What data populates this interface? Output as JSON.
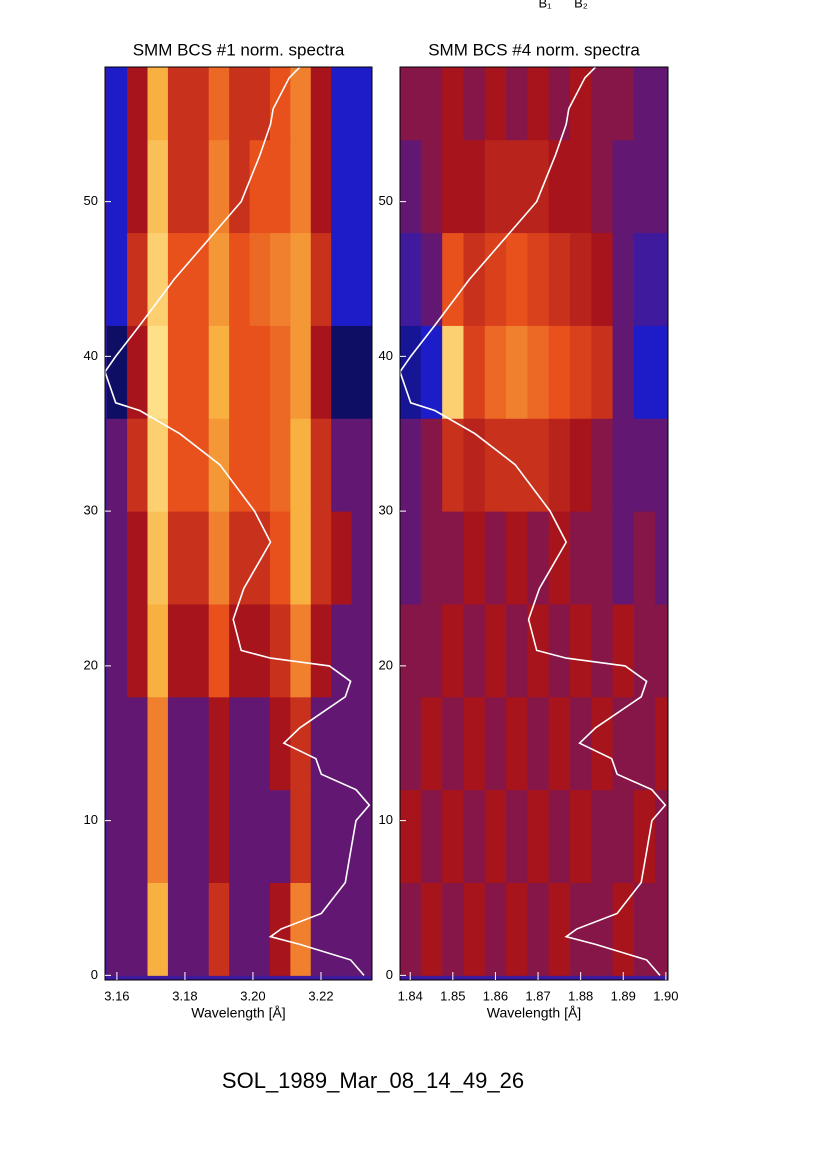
{
  "header": {
    "labels": [
      "B₁",
      "B₂"
    ]
  },
  "footer": "SOL_1989_Mar_08_14_49_26",
  "colormap": [
    "#000000",
    "#1c1cc8",
    "#a8141c",
    "#e8501c",
    "#f8b040",
    "#fff0a0"
  ],
  "chart_data": [
    {
      "type": "heatmap",
      "title": "SMM BCS #1 norm. spectra",
      "xlabel": "Wavelength [Å]",
      "xlim": [
        3.1565,
        3.235
      ],
      "xticks": [
        3.16,
        3.18,
        {
          "value": 3.2,
          "label": "3.20"
        },
        3.22
      ],
      "ylim": [
        -0.3,
        58.7
      ],
      "yticks": [
        0,
        10,
        20,
        30,
        40,
        50
      ],
      "x": [
        3.16,
        3.166,
        3.172,
        3.178,
        3.184,
        3.19,
        3.196,
        3.202,
        3.208,
        3.214,
        3.22,
        3.226,
        3.232
      ],
      "y": [
        3,
        9,
        15,
        21,
        27,
        33,
        39,
        45,
        51,
        57
      ],
      "z": [
        [
          0.3,
          0.3,
          0.8,
          0.3,
          0.3,
          0.5,
          0.3,
          0.3,
          0.4,
          0.7,
          0.3,
          0.3,
          0.3
        ],
        [
          0.3,
          0.3,
          0.7,
          0.3,
          0.3,
          0.4,
          0.3,
          0.3,
          0.3,
          0.5,
          0.3,
          0.3,
          0.3
        ],
        [
          0.3,
          0.3,
          0.7,
          0.3,
          0.3,
          0.4,
          0.3,
          0.3,
          0.4,
          0.5,
          0.3,
          0.3,
          0.3
        ],
        [
          0.3,
          0.4,
          0.8,
          0.4,
          0.4,
          0.6,
          0.4,
          0.4,
          0.5,
          0.7,
          0.4,
          0.3,
          0.3
        ],
        [
          0.3,
          0.4,
          0.85,
          0.5,
          0.5,
          0.7,
          0.5,
          0.5,
          0.6,
          0.8,
          0.5,
          0.4,
          0.3
        ],
        [
          0.3,
          0.5,
          0.9,
          0.6,
          0.6,
          0.75,
          0.6,
          0.6,
          0.65,
          0.8,
          0.5,
          0.3,
          0.3
        ],
        [
          0.1,
          0.4,
          0.95,
          0.6,
          0.6,
          0.8,
          0.6,
          0.6,
          0.65,
          0.75,
          0.4,
          0.1,
          0.1
        ],
        [
          0.2,
          0.5,
          0.9,
          0.6,
          0.6,
          0.75,
          0.6,
          0.65,
          0.7,
          0.75,
          0.5,
          0.2,
          0.2
        ],
        [
          0.2,
          0.4,
          0.85,
          0.5,
          0.5,
          0.7,
          0.5,
          0.6,
          0.6,
          0.7,
          0.4,
          0.2,
          0.2
        ],
        [
          0.2,
          0.4,
          0.8,
          0.5,
          0.5,
          0.65,
          0.5,
          0.5,
          0.6,
          0.7,
          0.4,
          0.2,
          0.2
        ]
      ],
      "curve": {
        "color": "#ffffff",
        "t": [
          0,
          1,
          2,
          2.5,
          3,
          4,
          6,
          8,
          10,
          11,
          12,
          13,
          14,
          15,
          16,
          18,
          19,
          20,
          20.5,
          21,
          23,
          25,
          28,
          30,
          33,
          35,
          36.5,
          37,
          39,
          40,
          42,
          45,
          48,
          50,
          53,
          55,
          56,
          58,
          58.7
        ],
        "values": [
          0.97,
          0.92,
          0.73,
          0.62,
          0.66,
          0.81,
          0.9,
          0.92,
          0.94,
          0.99,
          0.94,
          0.81,
          0.79,
          0.67,
          0.73,
          0.9,
          0.92,
          0.84,
          0.62,
          0.51,
          0.48,
          0.52,
          0.62,
          0.56,
          0.43,
          0.28,
          0.13,
          0.04,
          0,
          0.04,
          0.13,
          0.26,
          0.41,
          0.51,
          0.58,
          0.62,
          0.63,
          0.69,
          0.73
        ]
      }
    },
    {
      "type": "heatmap",
      "title": "SMM BCS #4 norm. spectra",
      "xlabel": "Wavelength [Å]",
      "xlim": [
        1.8376,
        1.9005
      ],
      "xticks": [
        1.84,
        1.85,
        1.86,
        1.87,
        1.88,
        1.89,
        {
          "value": 1.9,
          "label": "1.90"
        }
      ],
      "ylim": [
        -0.3,
        58.7
      ],
      "yticks": [
        0,
        10,
        20,
        30,
        40,
        50
      ],
      "x": [
        1.84,
        1.845,
        1.85,
        1.855,
        1.86,
        1.865,
        1.87,
        1.875,
        1.88,
        1.885,
        1.89,
        1.895,
        1.9
      ],
      "y": [
        3,
        9,
        15,
        21,
        27,
        33,
        39,
        45,
        51,
        57
      ],
      "z": [
        [
          0.35,
          0.4,
          0.35,
          0.4,
          0.35,
          0.4,
          0.35,
          0.4,
          0.35,
          0.35,
          0.4,
          0.35,
          0.35
        ],
        [
          0.4,
          0.35,
          0.4,
          0.35,
          0.4,
          0.35,
          0.4,
          0.35,
          0.4,
          0.35,
          0.35,
          0.4,
          0.35
        ],
        [
          0.35,
          0.4,
          0.35,
          0.4,
          0.35,
          0.4,
          0.35,
          0.4,
          0.35,
          0.4,
          0.35,
          0.35,
          0.4
        ],
        [
          0.35,
          0.35,
          0.4,
          0.35,
          0.4,
          0.35,
          0.4,
          0.35,
          0.4,
          0.35,
          0.4,
          0.35,
          0.35
        ],
        [
          0.3,
          0.35,
          0.35,
          0.4,
          0.35,
          0.4,
          0.35,
          0.4,
          0.35,
          0.35,
          0.3,
          0.35,
          0.3
        ],
        [
          0.3,
          0.35,
          0.5,
          0.45,
          0.5,
          0.5,
          0.5,
          0.45,
          0.4,
          0.35,
          0.3,
          0.3,
          0.3
        ],
        [
          0.15,
          0.2,
          0.9,
          0.55,
          0.65,
          0.7,
          0.65,
          0.6,
          0.55,
          0.5,
          0.3,
          0.2,
          0.2
        ],
        [
          0.25,
          0.3,
          0.6,
          0.5,
          0.55,
          0.6,
          0.55,
          0.5,
          0.45,
          0.4,
          0.3,
          0.25,
          0.25
        ],
        [
          0.3,
          0.35,
          0.4,
          0.4,
          0.45,
          0.45,
          0.45,
          0.4,
          0.4,
          0.35,
          0.3,
          0.3,
          0.3
        ],
        [
          0.35,
          0.35,
          0.4,
          0.35,
          0.4,
          0.35,
          0.4,
          0.35,
          0.4,
          0.35,
          0.35,
          0.3,
          0.3
        ]
      ],
      "curve": {
        "color": "#ffffff",
        "t": [
          0,
          1,
          2,
          2.5,
          3,
          4,
          6,
          8,
          10,
          11,
          12,
          13,
          14,
          15,
          16,
          18,
          19,
          20,
          20.5,
          21,
          23,
          25,
          28,
          30,
          33,
          35,
          36.5,
          37,
          39,
          40,
          42,
          45,
          48,
          50,
          53,
          55,
          56,
          58,
          58.7
        ],
        "values": [
          0.97,
          0.92,
          0.73,
          0.62,
          0.66,
          0.81,
          0.9,
          0.92,
          0.94,
          0.99,
          0.94,
          0.81,
          0.79,
          0.67,
          0.73,
          0.9,
          0.92,
          0.84,
          0.62,
          0.51,
          0.48,
          0.52,
          0.62,
          0.56,
          0.43,
          0.28,
          0.13,
          0.04,
          0,
          0.04,
          0.13,
          0.26,
          0.41,
          0.51,
          0.58,
          0.62,
          0.63,
          0.69,
          0.73
        ]
      }
    }
  ]
}
